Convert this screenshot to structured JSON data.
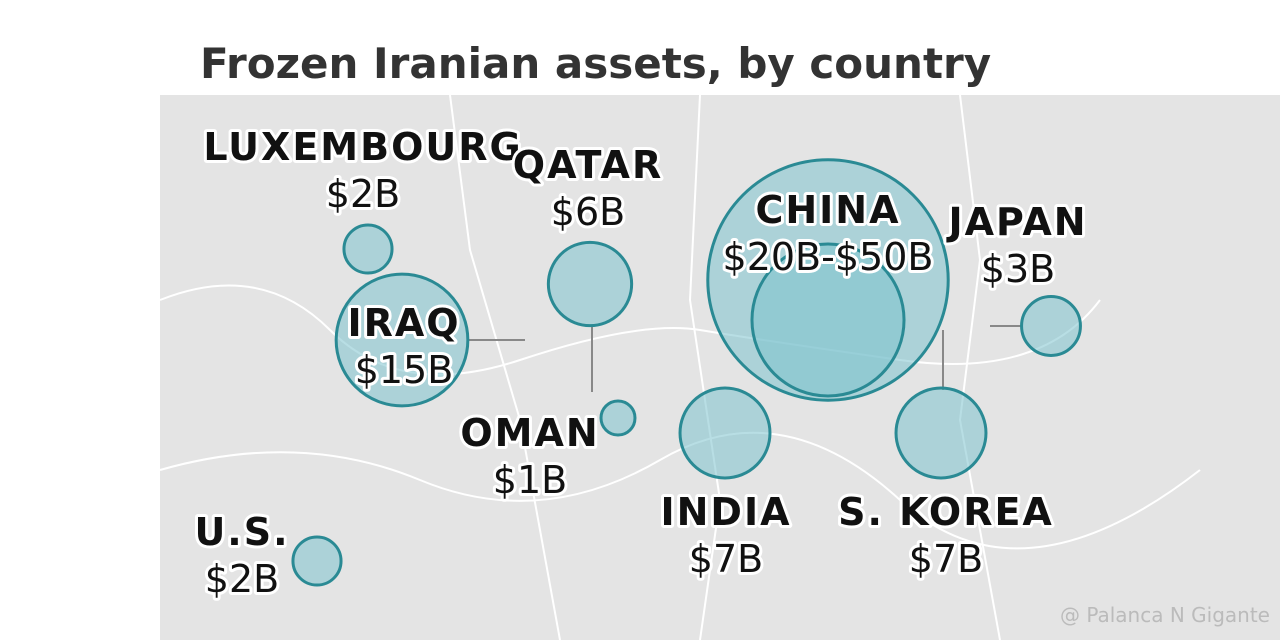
{
  "title": "Frozen Iranian assets, by country",
  "countries": [
    {
      "name": "LUXEMBOURG",
      "label": "$2B",
      "values": [
        2
      ]
    },
    {
      "name": "QATAR",
      "label": "$6B",
      "values": [
        6
      ]
    },
    {
      "name": "IRAQ",
      "label": "$15B",
      "values": [
        15
      ]
    },
    {
      "name": "OMAN",
      "label": "$1B",
      "values": [
        1
      ]
    },
    {
      "name": "CHINA",
      "label": "$20B-$50B",
      "values": [
        50,
        20
      ]
    },
    {
      "name": "JAPAN",
      "label": "$3B",
      "values": [
        3
      ]
    },
    {
      "name": "INDIA",
      "label": "$7B",
      "values": [
        7
      ]
    },
    {
      "name": "S. KOREA",
      "label": "$7B",
      "values": [
        7
      ]
    },
    {
      "name": "U.S.",
      "label": "$2B",
      "values": [
        2
      ]
    }
  ],
  "watermark": "@ Palanca N Gigante"
}
